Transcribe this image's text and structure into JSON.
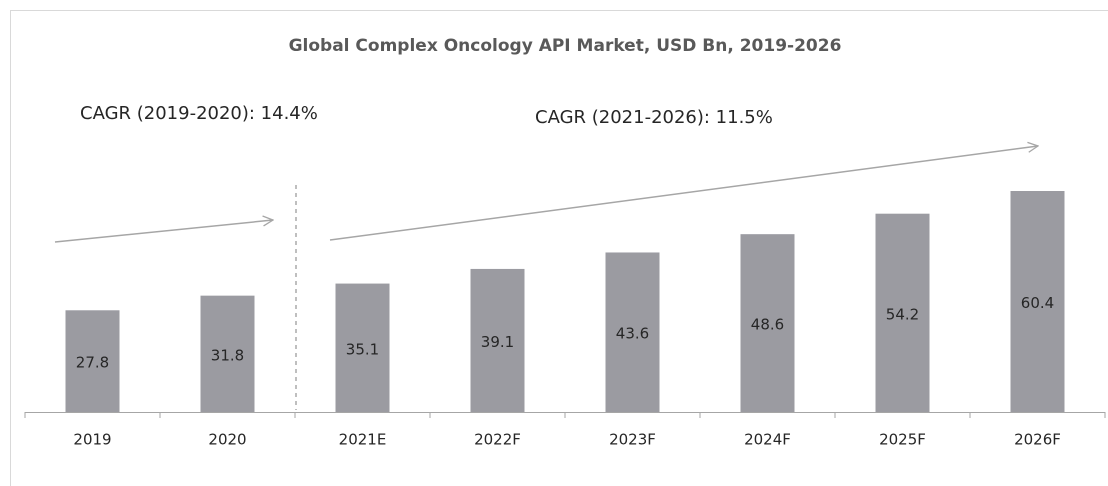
{
  "chart_data": {
    "type": "bar",
    "title": "Global Complex Oncology API Market, USD  Bn, 2019-2026",
    "annotations": [
      "CAGR (2019-2020): 14.4%",
      "CAGR (2021-2026): 11.5%"
    ],
    "categories": [
      "2019",
      "2020",
      "2021E",
      "2022F",
      "2023F",
      "2024F",
      "2025F",
      "2026F"
    ],
    "values": [
      27.8,
      31.8,
      35.1,
      39.1,
      43.6,
      48.6,
      54.2,
      60.4
    ],
    "color": "#9b9ba1"
  }
}
